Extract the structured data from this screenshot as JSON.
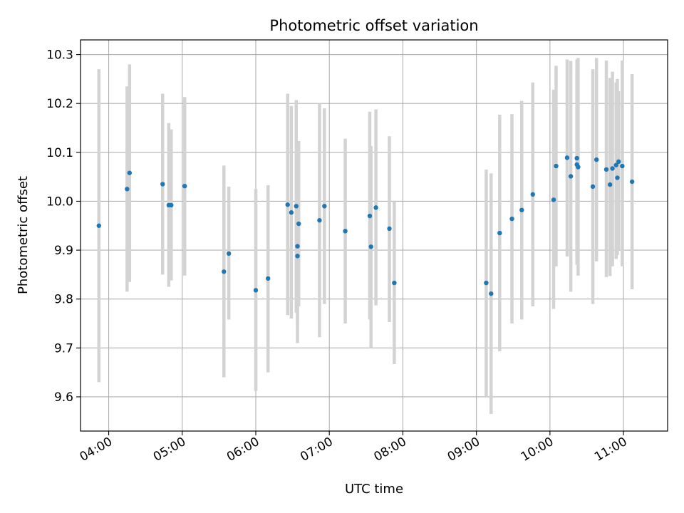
{
  "chart_data": {
    "type": "scatter",
    "title": "Photometric offset variation",
    "xlabel": "UTC time",
    "ylabel": "Photometric offset",
    "x_axis": "time",
    "xlim": [
      "03:37",
      "11:36"
    ],
    "ylim": [
      9.53,
      10.33
    ],
    "xticks": [
      "04:00",
      "05:00",
      "06:00",
      "07:00",
      "08:00",
      "09:00",
      "10:00",
      "11:00"
    ],
    "yticks": [
      "9.6",
      "9.7",
      "9.8",
      "9.9",
      "10.0",
      "10.1",
      "10.2",
      "10.3"
    ],
    "grid": true,
    "colors": {
      "point": "#1f77b4",
      "errorbar": "#d3d3d3",
      "grid": "#b0b0b0"
    },
    "points": [
      {
        "x": "03:52",
        "y": 9.95,
        "lo": 9.63,
        "hi": 10.27
      },
      {
        "x": "04:15",
        "y": 10.025,
        "lo": 9.815,
        "hi": 10.235
      },
      {
        "x": "04:17",
        "y": 10.058,
        "lo": 9.835,
        "hi": 10.28
      },
      {
        "x": "04:44",
        "y": 10.035,
        "lo": 9.85,
        "hi": 10.22
      },
      {
        "x": "04:49",
        "y": 9.992,
        "lo": 9.825,
        "hi": 10.16
      },
      {
        "x": "04:51",
        "y": 9.992,
        "lo": 9.838,
        "hi": 10.147
      },
      {
        "x": "05:02",
        "y": 10.031,
        "lo": 9.848,
        "hi": 10.213
      },
      {
        "x": "05:34",
        "y": 9.856,
        "lo": 9.64,
        "hi": 10.073
      },
      {
        "x": "05:38",
        "y": 9.893,
        "lo": 9.758,
        "hi": 10.03
      },
      {
        "x": "06:00",
        "y": 9.818,
        "lo": 9.612,
        "hi": 10.025
      },
      {
        "x": "06:10",
        "y": 9.842,
        "lo": 9.65,
        "hi": 10.033
      },
      {
        "x": "06:26",
        "y": 9.993,
        "lo": 9.767,
        "hi": 10.22
      },
      {
        "x": "06:29",
        "y": 9.977,
        "lo": 9.76,
        "hi": 10.195
      },
      {
        "x": "06:33",
        "y": 9.99,
        "lo": 9.772,
        "hi": 10.207
      },
      {
        "x": "06:34",
        "y": 9.908,
        "lo": 9.75,
        "hi": 10.065
      },
      {
        "x": "06:34",
        "y": 9.888,
        "lo": 9.71,
        "hi": 10.067
      },
      {
        "x": "06:35",
        "y": 9.954,
        "lo": 9.785,
        "hi": 10.123
      },
      {
        "x": "06:52",
        "y": 9.961,
        "lo": 9.722,
        "hi": 10.2
      },
      {
        "x": "06:56",
        "y": 9.99,
        "lo": 9.79,
        "hi": 10.19
      },
      {
        "x": "07:13",
        "y": 9.939,
        "lo": 9.75,
        "hi": 10.128
      },
      {
        "x": "07:33",
        "y": 9.97,
        "lo": 9.758,
        "hi": 10.183
      },
      {
        "x": "07:34",
        "y": 9.907,
        "lo": 9.7,
        "hi": 10.113
      },
      {
        "x": "07:38",
        "y": 9.987,
        "lo": 9.787,
        "hi": 10.188
      },
      {
        "x": "07:49",
        "y": 9.944,
        "lo": 9.753,
        "hi": 10.133
      },
      {
        "x": "07:53",
        "y": 9.833,
        "lo": 9.667,
        "hi": 10.0
      },
      {
        "x": "09:08",
        "y": 9.833,
        "lo": 9.6,
        "hi": 10.065
      },
      {
        "x": "09:12",
        "y": 9.811,
        "lo": 9.565,
        "hi": 10.057
      },
      {
        "x": "09:19",
        "y": 9.935,
        "lo": 9.693,
        "hi": 10.177
      },
      {
        "x": "09:29",
        "y": 9.964,
        "lo": 9.75,
        "hi": 10.178
      },
      {
        "x": "09:37",
        "y": 9.982,
        "lo": 9.758,
        "hi": 10.205
      },
      {
        "x": "09:46",
        "y": 10.014,
        "lo": 9.785,
        "hi": 10.243
      },
      {
        "x": "10:03",
        "y": 10.003,
        "lo": 9.78,
        "hi": 10.228
      },
      {
        "x": "10:05",
        "y": 10.072,
        "lo": 9.867,
        "hi": 10.277
      },
      {
        "x": "10:14",
        "y": 10.089,
        "lo": 9.887,
        "hi": 10.29
      },
      {
        "x": "10:17",
        "y": 10.051,
        "lo": 9.815,
        "hi": 10.287
      },
      {
        "x": "10:22",
        "y": 10.088,
        "lo": 9.888,
        "hi": 10.29
      },
      {
        "x": "10:22",
        "y": 10.075,
        "lo": 9.87,
        "hi": 10.267
      },
      {
        "x": "10:23",
        "y": 10.07,
        "lo": 9.848,
        "hi": 10.293
      },
      {
        "x": "10:35",
        "y": 10.03,
        "lo": 9.79,
        "hi": 10.27
      },
      {
        "x": "10:38",
        "y": 10.085,
        "lo": 9.877,
        "hi": 10.293
      },
      {
        "x": "10:46",
        "y": 10.065,
        "lo": 9.845,
        "hi": 10.288
      },
      {
        "x": "10:49",
        "y": 10.034,
        "lo": 9.847,
        "hi": 10.252
      },
      {
        "x": "10:51",
        "y": 10.067,
        "lo": 9.867,
        "hi": 10.265
      },
      {
        "x": "10:54",
        "y": 10.074,
        "lo": 9.882,
        "hi": 10.243
      },
      {
        "x": "10:55",
        "y": 10.048,
        "lo": 9.89,
        "hi": 10.25
      },
      {
        "x": "10:56",
        "y": 10.081,
        "lo": 9.9,
        "hi": 10.225
      },
      {
        "x": "10:59",
        "y": 10.072,
        "lo": 9.867,
        "hi": 10.288
      },
      {
        "x": "11:07",
        "y": 10.04,
        "lo": 9.82,
        "hi": 10.26
      }
    ]
  }
}
